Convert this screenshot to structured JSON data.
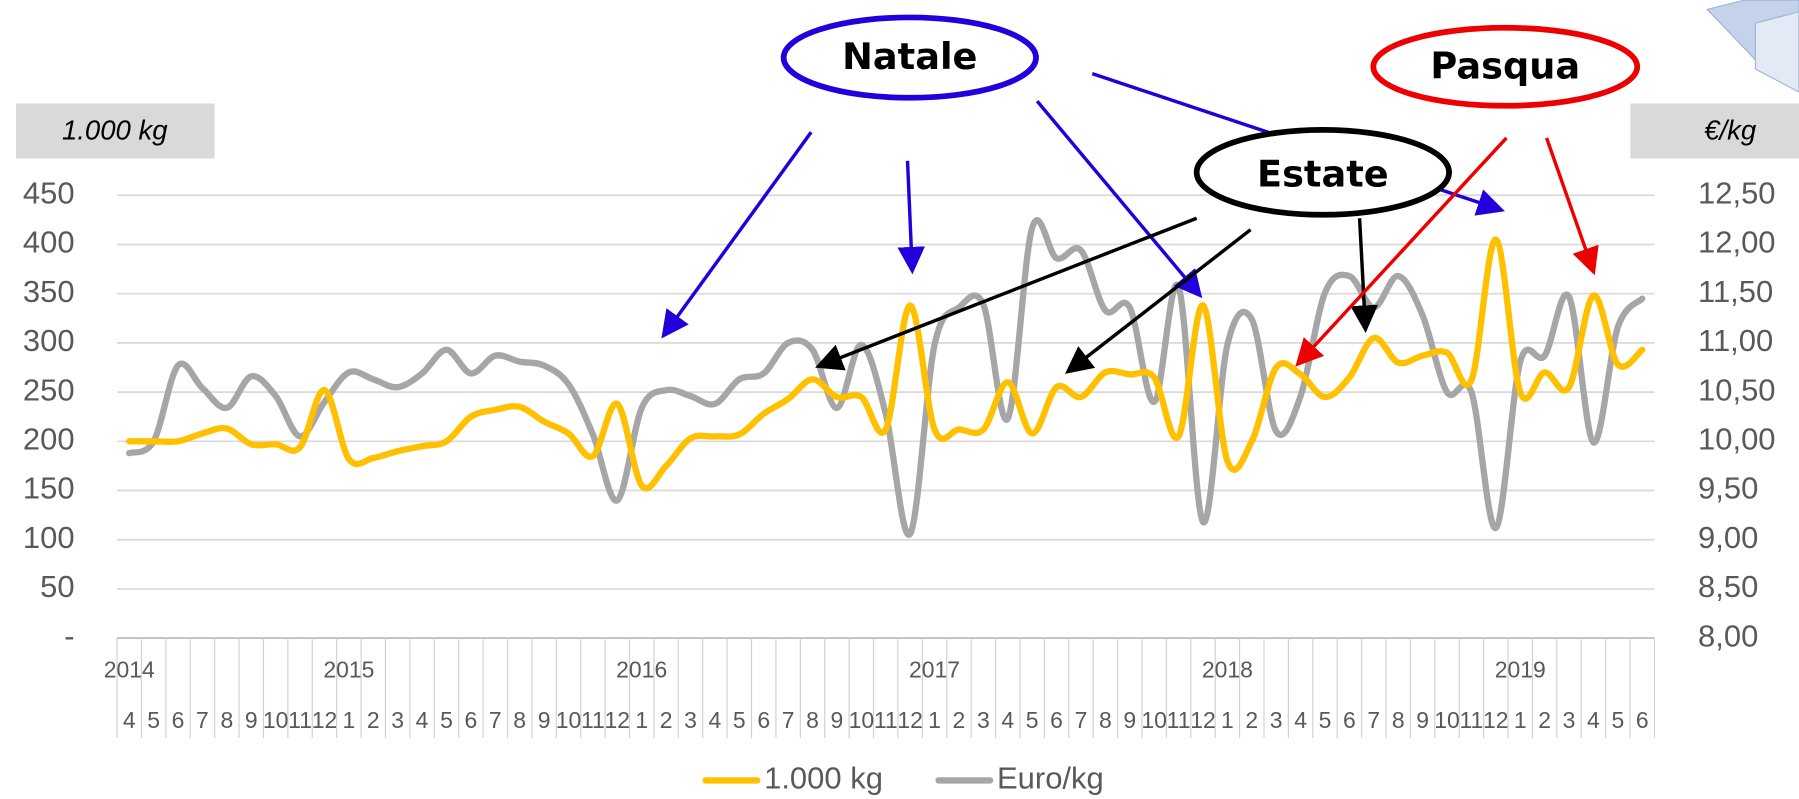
{
  "chart_data": {
    "type": "line",
    "y_label": "1.000 kg",
    "y2_label": "€/kg",
    "categories": [
      "4",
      "5",
      "6",
      "7",
      "8",
      "9",
      "10",
      "11",
      "12",
      "1",
      "2",
      "3",
      "4",
      "5",
      "6",
      "7",
      "8",
      "9",
      "10",
      "11",
      "12",
      "1",
      "2",
      "3",
      "4",
      "5",
      "6",
      "7",
      "8",
      "9",
      "10",
      "11",
      "12",
      "1",
      "2",
      "3",
      "4",
      "5",
      "6",
      "7",
      "8",
      "9",
      "10",
      "11",
      "12",
      "1",
      "2",
      "3",
      "4",
      "5",
      "6",
      "7",
      "8",
      "9",
      "10",
      "11",
      "12",
      "1",
      "2",
      "3",
      "4",
      "5",
      "6"
    ],
    "years": [
      "2014",
      null,
      null,
      null,
      null,
      null,
      null,
      null,
      null,
      "2015",
      null,
      null,
      null,
      null,
      null,
      null,
      null,
      null,
      null,
      null,
      null,
      "2016",
      null,
      null,
      null,
      null,
      null,
      null,
      null,
      null,
      null,
      null,
      null,
      "2017",
      null,
      null,
      null,
      null,
      null,
      null,
      null,
      null,
      null,
      null,
      null,
      "2018",
      null,
      null,
      null,
      null,
      null,
      null,
      null,
      null,
      null,
      null,
      null,
      "2019",
      null,
      null,
      null,
      null,
      null
    ],
    "series": [
      {
        "name": "1.000 kg",
        "color": "#FFC000",
        "values": [
          200,
          200,
          200,
          208,
          213,
          197,
          197,
          194,
          252,
          182,
          183,
          190,
          195,
          200,
          225,
          232,
          235,
          220,
          208,
          185,
          238,
          155,
          175,
          203,
          205,
          207,
          228,
          243,
          263,
          245,
          245,
          212,
          338,
          212,
          212,
          212,
          260,
          208,
          255,
          245,
          270,
          268,
          265,
          205,
          338,
          180,
          200,
          275,
          268,
          245,
          265,
          305,
          280,
          287,
          290,
          262,
          405,
          250,
          270,
          255,
          348,
          278,
          293
        ]
      },
      {
        "name": "Euro/kg",
        "color": "#A6A6A6",
        "axis": "y2",
        "values": [
          9.88,
          10.0,
          10.77,
          10.54,
          10.34,
          10.66,
          10.46,
          10.05,
          10.4,
          10.7,
          10.63,
          10.55,
          10.69,
          10.93,
          10.69,
          10.87,
          10.81,
          10.77,
          10.58,
          10.07,
          9.4,
          10.34,
          10.52,
          10.46,
          10.38,
          10.63,
          10.69,
          11.0,
          10.93,
          10.34,
          10.98,
          10.28,
          9.06,
          10.98,
          11.36,
          11.39,
          10.23,
          12.17,
          11.86,
          11.94,
          11.33,
          11.36,
          10.4,
          11.57,
          9.18,
          10.98,
          11.24,
          10.1,
          10.46,
          11.51,
          11.68,
          11.36,
          11.68,
          11.28,
          10.5,
          10.5,
          9.12,
          10.81,
          10.87,
          11.47,
          9.99,
          11.16,
          11.45
        ]
      }
    ],
    "ylim": [
      0,
      450
    ],
    "yticks": [
      {
        "value": 0,
        "label": "-"
      },
      50,
      100,
      150,
      200,
      250,
      300,
      350,
      400,
      450
    ],
    "y2lim": [
      8,
      12.5
    ],
    "y2ticks": [
      {
        "value": 8,
        "label": "8,00"
      },
      {
        "value": 8.5,
        "label": "8,50"
      },
      {
        "value": 9,
        "label": "9,00"
      },
      {
        "value": 9.5,
        "label": "9,50"
      },
      {
        "value": 10,
        "label": "10,00"
      },
      {
        "value": 10.5,
        "label": "10,50"
      },
      {
        "value": 11,
        "label": "11,00"
      },
      {
        "value": 11.5,
        "label": "11,50"
      },
      {
        "value": 12,
        "label": "12,00"
      },
      {
        "value": 12.5,
        "label": "12,50"
      }
    ],
    "grid": true,
    "legend": "bottom",
    "annotations": [
      "Natale",
      "Pasqua",
      "Estate"
    ]
  }
}
